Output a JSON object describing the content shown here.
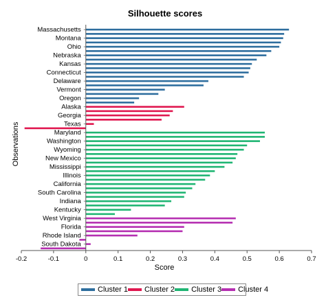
{
  "chart_data": {
    "type": "bar",
    "orientation": "horizontal",
    "title": "Silhouette scores",
    "xlabel": "Score",
    "ylabel": "Observations",
    "xlim": [
      -0.2,
      0.7
    ],
    "xticks": [
      "-0.2",
      "-0.1",
      "0",
      "0.1",
      "0.2",
      "0.3",
      "0.4",
      "0.5",
      "0.6",
      "0.7"
    ],
    "xtick_values": [
      -0.2,
      -0.1,
      0,
      0.1,
      0.2,
      0.3,
      0.4,
      0.5,
      0.6,
      0.7
    ],
    "grid": false,
    "legend_position": "bottom",
    "series": [
      {
        "name": "Cluster 1",
        "color": "#2e6e9e",
        "values": [
          0.63,
          0.615,
          0.612,
          0.605,
          0.6,
          0.575,
          0.56,
          0.53,
          0.515,
          0.51,
          0.505,
          0.49,
          0.38,
          0.365,
          0.245,
          0.225,
          0.165,
          0.15
        ]
      },
      {
        "name": "Cluster 2",
        "color": "#e0174f",
        "values": [
          0.305,
          0.27,
          0.26,
          0.235,
          0.025,
          -0.19
        ]
      },
      {
        "name": "Cluster 3",
        "color": "#1fb573",
        "values": [
          0.555,
          0.555,
          0.54,
          0.5,
          0.49,
          0.47,
          0.465,
          0.455,
          0.43,
          0.4,
          0.385,
          0.37,
          0.34,
          0.33,
          0.31,
          0.305,
          0.265,
          0.245,
          0.14,
          0.09
        ]
      },
      {
        "name": "Cluster 4",
        "color": "#b52fb1",
        "values": [
          0.465,
          0.455,
          0.305,
          0.3,
          0.16,
          -0.02,
          0.015,
          -0.14
        ]
      }
    ],
    "category_labels": [
      "Massachusetts",
      "Montana",
      "Ohio",
      "Nebraska",
      "Kansas",
      "Connecticut",
      "Delaware",
      "Vermont",
      "Oregon",
      "Alaska",
      "Georgia",
      "Texas",
      "Maryland",
      "Washington",
      "Wyoming",
      "New Mexico",
      "Mississippi",
      "Illinois",
      "California",
      "South Carolina",
      "Indiana",
      "Kentucky",
      "West Virginia",
      "Florida",
      "Rhode Island",
      "South Dakota"
    ]
  }
}
